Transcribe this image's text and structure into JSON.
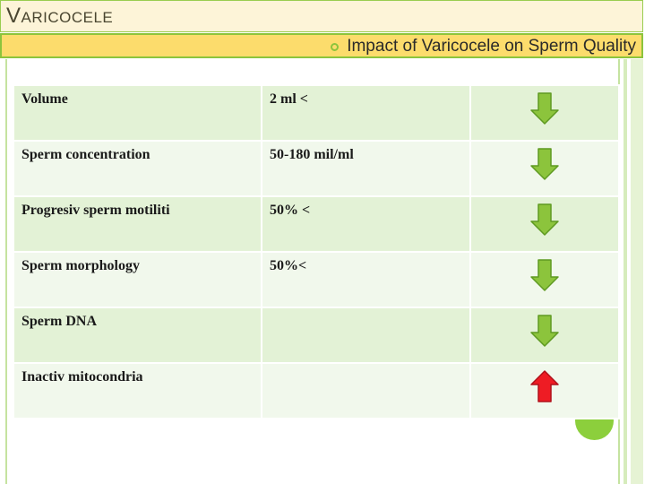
{
  "slide": {
    "title": "Varicocele",
    "subtitle": "Impact of Varicocele on Sperm Quality"
  },
  "table": {
    "rows": [
      {
        "parameter": "Volume",
        "value": "2 ml <",
        "trend": "down"
      },
      {
        "parameter": "Sperm concentration",
        "value": "50-180 mil/ml",
        "trend": "down"
      },
      {
        "parameter": "Progresiv sperm motiliti",
        "value": "50% <",
        "trend": "down"
      },
      {
        "parameter": "Sperm morphology",
        "value": "50%<",
        "trend": "down"
      },
      {
        "parameter": "Sperm DNA",
        "value": "",
        "trend": "down"
      },
      {
        "parameter": "Inactiv mitocondria",
        "value": "",
        "trend": "up"
      }
    ]
  },
  "colors": {
    "down_arrow": "#8cc43c",
    "up_arrow": "#ee1c24",
    "accent": "#8cc43c",
    "subtitle_band": "#fcdc6c"
  },
  "icons": {
    "down": "down-arrow-icon",
    "up": "up-arrow-icon",
    "bullet": "circle-bullet-icon"
  }
}
